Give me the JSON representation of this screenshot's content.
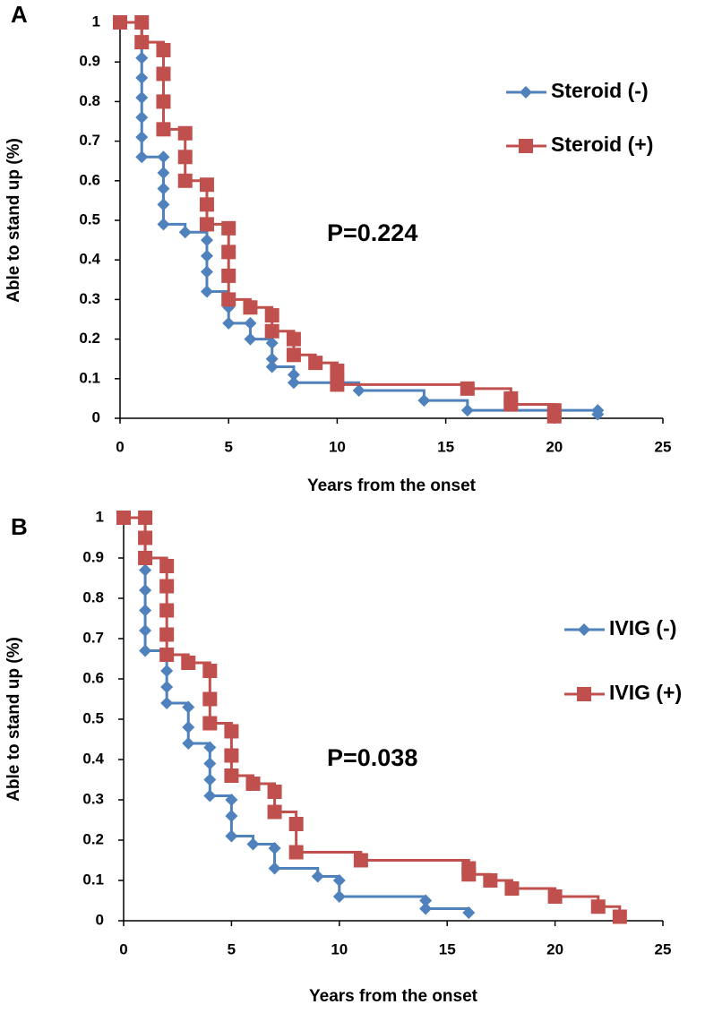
{
  "chart_data": [
    {
      "type": "step",
      "panel_label": "A",
      "annotation": "P=0.224",
      "xlabel": "Years from the onset",
      "ylabel": "Able to stand up (%)",
      "xlim": [
        0,
        25
      ],
      "xticks": [
        0,
        5,
        10,
        15,
        20,
        25
      ],
      "ylim": [
        0,
        1
      ],
      "yticks": [
        0,
        0.1,
        0.2,
        0.3,
        0.4,
        0.5,
        0.6,
        0.7,
        0.8,
        0.9,
        1
      ],
      "legend": "upper right",
      "grid": false,
      "series": [
        {
          "name": "Steroid (-)",
          "color": "#4f81bd",
          "marker": "diamond",
          "x": [
            0,
            1,
            1,
            1,
            1,
            1,
            1,
            2,
            2,
            2,
            2,
            2,
            3,
            4,
            4,
            4,
            4,
            5,
            5,
            6,
            6,
            7,
            7,
            7,
            8,
            8,
            11,
            14,
            16,
            22,
            22
          ],
          "values": [
            1,
            0.91,
            0.86,
            0.81,
            0.76,
            0.71,
            0.66,
            0.66,
            0.62,
            0.58,
            0.54,
            0.49,
            0.47,
            0.45,
            0.41,
            0.37,
            0.32,
            0.28,
            0.24,
            0.24,
            0.2,
            0.19,
            0.15,
            0.13,
            0.11,
            0.09,
            0.07,
            0.045,
            0.02,
            0.02,
            0.01
          ]
        },
        {
          "name": "Steroid (+)",
          "color": "#c0504d",
          "marker": "square",
          "x": [
            0,
            1,
            1,
            2,
            2,
            2,
            2,
            3,
            3,
            3,
            4,
            4,
            4,
            5,
            5,
            5,
            5,
            6,
            7,
            7,
            8,
            8,
            9,
            10,
            10,
            16,
            18,
            18,
            20,
            20
          ],
          "values": [
            1,
            1,
            0.95,
            0.93,
            0.87,
            0.8,
            0.73,
            0.72,
            0.66,
            0.6,
            0.59,
            0.54,
            0.49,
            0.48,
            0.42,
            0.36,
            0.3,
            0.28,
            0.26,
            0.22,
            0.2,
            0.16,
            0.14,
            0.12,
            0.085,
            0.075,
            0.05,
            0.035,
            0.02,
            0.005
          ]
        }
      ]
    },
    {
      "type": "step",
      "panel_label": "B",
      "annotation": "P=0.038",
      "xlabel": "Years from the onset",
      "ylabel": "Able to stand up (%)",
      "xlim": [
        0,
        25
      ],
      "xticks": [
        0,
        5,
        10,
        15,
        20,
        25
      ],
      "ylim": [
        0,
        1
      ],
      "yticks": [
        0,
        0.1,
        0.2,
        0.3,
        0.4,
        0.5,
        0.6,
        0.7,
        0.8,
        0.9,
        1
      ],
      "legend": "center right",
      "grid": false,
      "series": [
        {
          "name": "IVIG (-)",
          "color": "#4f81bd",
          "marker": "diamond",
          "x": [
            0,
            1,
            1,
            1,
            1,
            1,
            2,
            2,
            2,
            3,
            3,
            3,
            4,
            4,
            4,
            4,
            5,
            5,
            5,
            6,
            7,
            7,
            9,
            10,
            10,
            14,
            14,
            16
          ],
          "values": [
            1,
            0.87,
            0.82,
            0.77,
            0.72,
            0.67,
            0.62,
            0.58,
            0.54,
            0.53,
            0.48,
            0.44,
            0.43,
            0.39,
            0.35,
            0.31,
            0.3,
            0.26,
            0.21,
            0.19,
            0.18,
            0.13,
            0.11,
            0.1,
            0.06,
            0.05,
            0.03,
            0.02
          ]
        },
        {
          "name": "IVIG (+)",
          "color": "#c0504d",
          "marker": "square",
          "x": [
            0,
            1,
            1,
            1,
            2,
            2,
            2,
            2,
            2,
            3,
            4,
            4,
            4,
            5,
            5,
            5,
            6,
            7,
            7,
            8,
            8,
            11,
            16,
            16,
            17,
            18,
            20,
            22,
            23
          ],
          "values": [
            1,
            1,
            0.95,
            0.9,
            0.88,
            0.83,
            0.77,
            0.71,
            0.66,
            0.64,
            0.62,
            0.55,
            0.49,
            0.47,
            0.41,
            0.36,
            0.34,
            0.32,
            0.27,
            0.24,
            0.17,
            0.15,
            0.13,
            0.115,
            0.1,
            0.08,
            0.06,
            0.035,
            0.01
          ]
        }
      ]
    }
  ]
}
